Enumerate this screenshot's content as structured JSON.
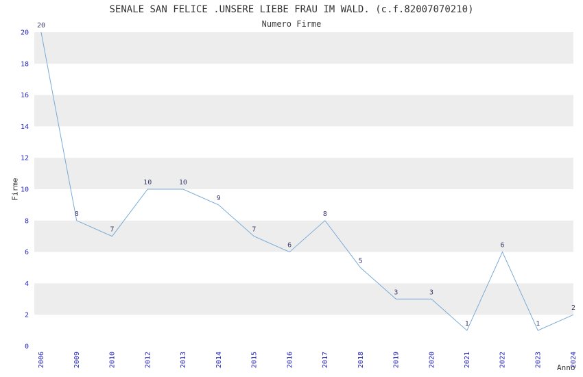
{
  "chart_data": {
    "type": "line",
    "title": "SENALE SAN FELICE .UNSERE LIEBE FRAU IM WALD. (c.f.82007070210)",
    "subtitle": "Numero Firme",
    "xlabel": "Anno",
    "ylabel": "Firme",
    "x": [
      "2006",
      "2009",
      "2010",
      "2012",
      "2013",
      "2014",
      "2015",
      "2016",
      "2017",
      "2018",
      "2019",
      "2020",
      "2021",
      "2022",
      "2023",
      "2024"
    ],
    "values": [
      20,
      8,
      7,
      10,
      10,
      9,
      7,
      6,
      8,
      5,
      3,
      3,
      1,
      6,
      1,
      2
    ],
    "ylim": [
      0,
      20
    ],
    "ytick_step": 2,
    "yticks": [
      0,
      2,
      4,
      6,
      8,
      10,
      12,
      14,
      16,
      18,
      20
    ],
    "grid": "horizontal-alternating-bands",
    "legend": "none",
    "data_labels": "shown-above-points",
    "colors": {
      "line": "#79aad6",
      "band": "#ededed",
      "background": "#ffffff",
      "tick_label": "#2424bc",
      "data_label": "#3b3b6b",
      "title": "#333333"
    }
  }
}
